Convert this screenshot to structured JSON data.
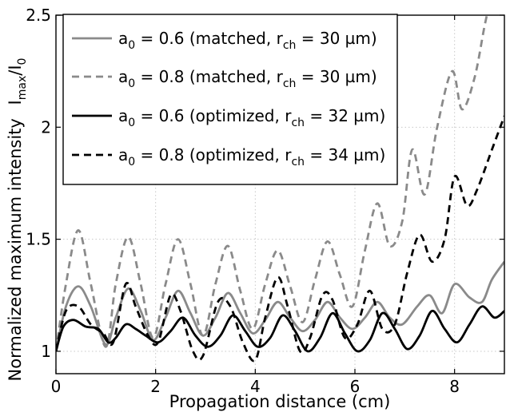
{
  "chart_data": {
    "type": "line",
    "xlabel": "Propagation distance (cm)",
    "ylabel_main": "Normalized maximum intensity",
    "ylabel_i": "I",
    "ylabel_max": "max",
    "ylabel_slash": "/I",
    "ylabel_zero": "0",
    "xlim": [
      0,
      9
    ],
    "ylim": [
      0.9,
      2.5
    ],
    "xticks": [
      0,
      2,
      4,
      6,
      8
    ],
    "yticks": [
      1,
      1.5,
      2,
      2.5
    ],
    "grid": true,
    "legend_position": "top-left",
    "series": [
      {
        "legend": {
          "a": "a",
          "a_sub": "0",
          "mid": " = 0.6 (matched, r",
          "r_sub": "ch",
          "end": " = 30 µm)"
        },
        "color": "#8a8a8a",
        "dash": "solid",
        "width": 2.8,
        "x": [
          0,
          0.2,
          0.45,
          0.7,
          1.0,
          1.2,
          1.45,
          1.7,
          1.95,
          2.2,
          2.45,
          2.7,
          2.95,
          3.2,
          3.45,
          3.7,
          3.95,
          4.2,
          4.45,
          4.7,
          4.95,
          5.2,
          5.45,
          5.7,
          5.95,
          6.2,
          6.45,
          6.7,
          6.95,
          7.25,
          7.5,
          7.75,
          8.0,
          8.3,
          8.55,
          8.75,
          9.0
        ],
        "y": [
          1.0,
          1.2,
          1.29,
          1.2,
          1.03,
          1.15,
          1.28,
          1.18,
          1.05,
          1.15,
          1.27,
          1.17,
          1.07,
          1.15,
          1.26,
          1.17,
          1.08,
          1.14,
          1.22,
          1.15,
          1.09,
          1.14,
          1.22,
          1.15,
          1.1,
          1.15,
          1.22,
          1.15,
          1.12,
          1.2,
          1.25,
          1.17,
          1.3,
          1.24,
          1.22,
          1.32,
          1.4
        ]
      },
      {
        "legend": {
          "a": "a",
          "a_sub": "0",
          "mid": " = 0.8 (matched, r",
          "r_sub": "ch",
          "end": " = 30 µm)"
        },
        "color": "#8a8a8a",
        "dash": "dashed",
        "width": 2.8,
        "x": [
          0,
          0.2,
          0.45,
          0.7,
          1.0,
          1.2,
          1.45,
          1.7,
          1.95,
          2.2,
          2.45,
          2.7,
          2.95,
          3.2,
          3.45,
          3.7,
          3.95,
          4.2,
          4.45,
          4.7,
          4.95,
          5.2,
          5.45,
          5.7,
          5.95,
          6.2,
          6.45,
          6.7,
          6.95,
          7.15,
          7.4,
          7.65,
          7.95,
          8.15,
          8.4,
          8.6,
          8.7
        ],
        "y": [
          1.0,
          1.3,
          1.54,
          1.3,
          1.02,
          1.3,
          1.51,
          1.3,
          1.06,
          1.3,
          1.5,
          1.3,
          1.07,
          1.3,
          1.47,
          1.27,
          1.1,
          1.3,
          1.45,
          1.29,
          1.13,
          1.32,
          1.49,
          1.34,
          1.2,
          1.45,
          1.66,
          1.47,
          1.58,
          1.9,
          1.7,
          2.0,
          2.25,
          2.08,
          2.22,
          2.45,
          2.55
        ]
      },
      {
        "legend": {
          "a": "a",
          "a_sub": "0",
          "mid": " = 0.6 (optimized, r",
          "r_sub": "ch",
          "end": " = 32 µm)"
        },
        "color": "#000000",
        "dash": "solid",
        "width": 2.8,
        "x": [
          0,
          0.15,
          0.35,
          0.6,
          0.85,
          1.05,
          1.2,
          1.4,
          1.6,
          1.8,
          2.05,
          2.3,
          2.55,
          2.8,
          3.05,
          3.3,
          3.55,
          3.8,
          4.05,
          4.3,
          4.55,
          4.8,
          5.05,
          5.3,
          5.55,
          5.8,
          6.05,
          6.3,
          6.55,
          6.8,
          7.05,
          7.3,
          7.55,
          7.8,
          8.05,
          8.3,
          8.55,
          8.8,
          9.0
        ],
        "y": [
          1.0,
          1.11,
          1.14,
          1.11,
          1.1,
          1.04,
          1.06,
          1.12,
          1.1,
          1.07,
          1.04,
          1.09,
          1.15,
          1.07,
          1.02,
          1.07,
          1.16,
          1.09,
          1.02,
          1.06,
          1.16,
          1.09,
          1.0,
          1.06,
          1.17,
          1.08,
          1.0,
          1.05,
          1.17,
          1.1,
          1.01,
          1.07,
          1.18,
          1.1,
          1.04,
          1.12,
          1.2,
          1.15,
          1.18
        ]
      },
      {
        "legend": {
          "a": "a",
          "a_sub": "0",
          "mid": " = 0.8 (optimized, r",
          "r_sub": "ch",
          "end": " = 34 µm)"
        },
        "color": "#000000",
        "dash": "dashed",
        "width": 2.8,
        "x": [
          0,
          0.2,
          0.45,
          0.7,
          0.95,
          1.15,
          1.4,
          1.6,
          1.85,
          2.05,
          2.3,
          2.5,
          2.75,
          2.95,
          3.25,
          3.5,
          3.75,
          4.0,
          4.2,
          4.45,
          4.65,
          4.9,
          5.1,
          5.35,
          5.55,
          5.8,
          6.05,
          6.3,
          6.55,
          6.8,
          7.05,
          7.3,
          7.55,
          7.8,
          8.0,
          8.25,
          8.45,
          8.75,
          9.0
        ],
        "y": [
          1.0,
          1.18,
          1.2,
          1.12,
          1.08,
          1.04,
          1.3,
          1.2,
          1.07,
          1.04,
          1.25,
          1.18,
          1.0,
          0.98,
          1.22,
          1.2,
          1.04,
          0.96,
          1.15,
          1.33,
          1.2,
          1.0,
          1.06,
          1.25,
          1.23,
          1.06,
          1.12,
          1.27,
          1.1,
          1.12,
          1.35,
          1.52,
          1.4,
          1.5,
          1.78,
          1.65,
          1.72,
          1.9,
          2.05
        ]
      }
    ]
  }
}
